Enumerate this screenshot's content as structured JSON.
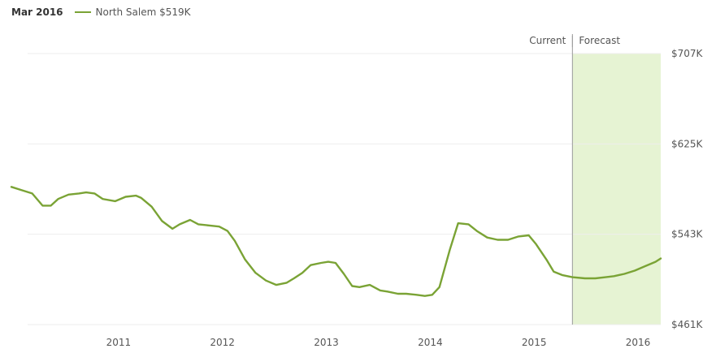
{
  "legend": {
    "date": "Mar 2016",
    "series_name": "North Salem",
    "series_value": "$519K"
  },
  "colors": {
    "line": "#7aa335",
    "forecast_fill": "#e6f3d3",
    "gridline": "#eeeeee",
    "divider": "#9a9a9a"
  },
  "chart_data": {
    "type": "line",
    "title": "",
    "xlabel": "",
    "ylabel": "",
    "x_ticks": [
      "2011",
      "2012",
      "2013",
      "2014",
      "2015",
      "2016"
    ],
    "x_tick_values": [
      2011,
      2012,
      2013,
      2014,
      2015,
      2016
    ],
    "y_ticks": [
      "$461K",
      "$543K",
      "$625K",
      "$707K"
    ],
    "ylim": [
      461,
      707
    ],
    "xlim": [
      2010.0,
      2016.25
    ],
    "grid": true,
    "regions": {
      "current_label": "Current",
      "forecast_label": "Forecast",
      "forecast_start": 2015.4
    },
    "series": [
      {
        "name": "North Salem",
        "x": [
          2010.0,
          2010.1,
          2010.2,
          2010.3,
          2010.38,
          2010.45,
          2010.55,
          2010.65,
          2010.72,
          2010.8,
          2010.88,
          2011.0,
          2011.1,
          2011.2,
          2011.25,
          2011.35,
          2011.45,
          2011.55,
          2011.62,
          2011.72,
          2011.8,
          2011.9,
          2012.0,
          2012.08,
          2012.15,
          2012.25,
          2012.35,
          2012.45,
          2012.55,
          2012.65,
          2012.72,
          2012.8,
          2012.88,
          2012.98,
          2013.05,
          2013.12,
          2013.2,
          2013.28,
          2013.35,
          2013.45,
          2013.55,
          2013.62,
          2013.72,
          2013.8,
          2013.9,
          2013.98,
          2014.05,
          2014.12,
          2014.22,
          2014.3,
          2014.4,
          2014.48,
          2014.58,
          2014.68,
          2014.78,
          2014.88,
          2014.98,
          2015.05,
          2015.15,
          2015.22,
          2015.3,
          2015.4,
          2015.52,
          2015.62,
          2015.72,
          2015.8,
          2015.9,
          2016.0,
          2016.1,
          2016.2,
          2016.25
        ],
        "values": [
          586,
          583,
          580,
          569,
          569,
          575,
          579,
          580,
          581,
          580,
          575,
          573,
          577,
          578,
          576,
          568,
          555,
          548,
          552,
          556,
          552,
          551,
          550,
          546,
          537,
          520,
          508,
          501,
          497,
          499,
          503,
          508,
          515,
          517,
          518,
          517,
          507,
          496,
          495,
          497,
          492,
          491,
          489,
          489,
          488,
          487,
          488,
          495,
          529,
          553,
          552,
          546,
          540,
          538,
          538,
          541,
          542,
          534,
          520,
          509,
          506,
          504,
          503,
          503,
          504,
          505,
          507,
          510,
          514,
          518,
          521
        ]
      }
    ]
  }
}
